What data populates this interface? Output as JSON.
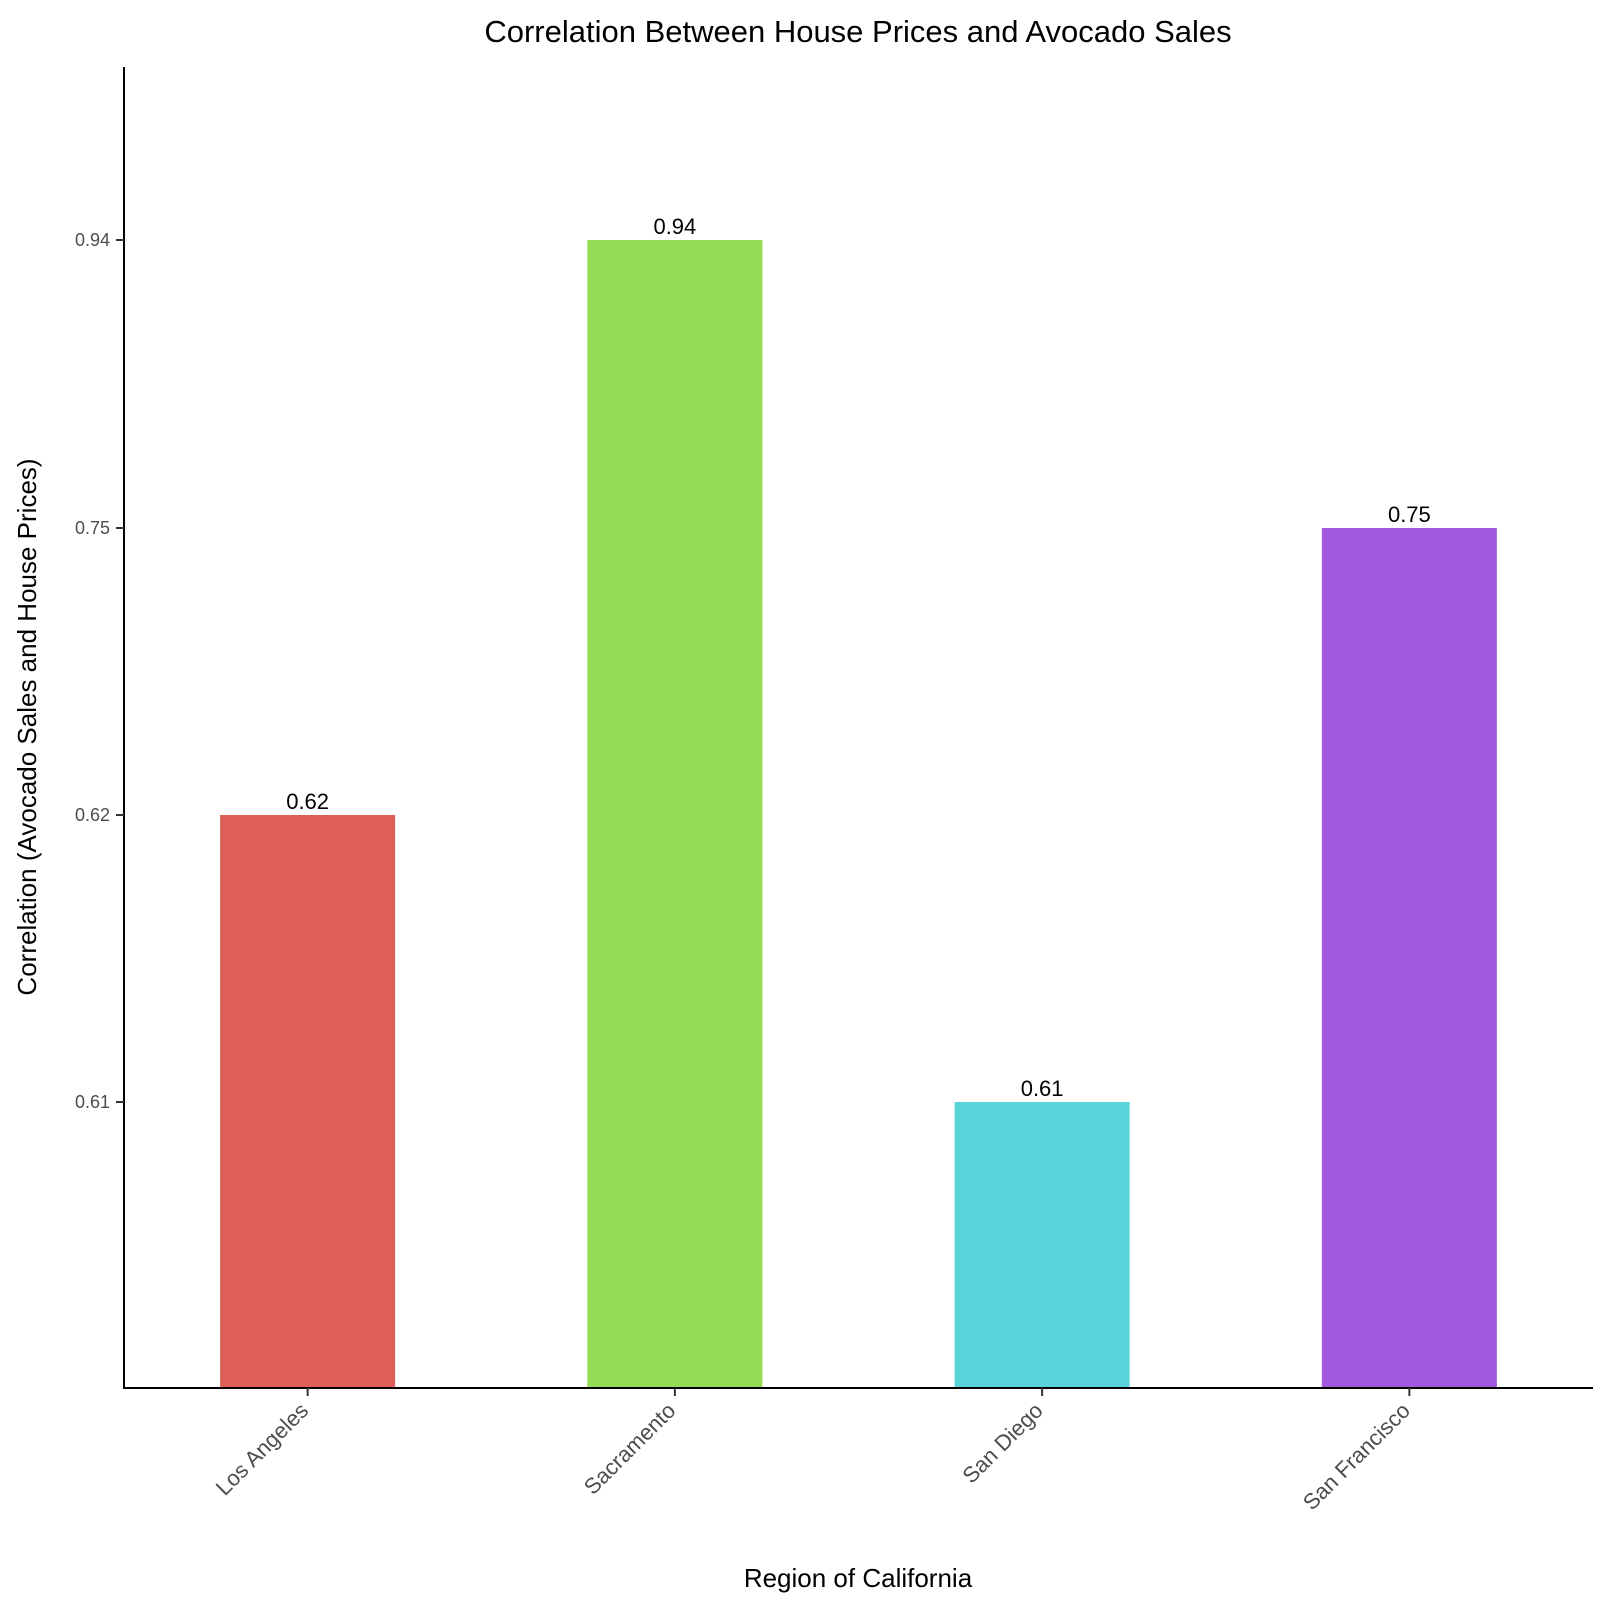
{
  "chart_data": {
    "type": "bar",
    "title": "Correlation Between House Prices and Avocado Sales",
    "xlabel": "Region of California",
    "ylabel": "Correlation (Avocado Sales and House Prices)",
    "categories": [
      "Los Angeles",
      "Sacramento",
      "San Diego",
      "San Francisco"
    ],
    "values": [
      0.62,
      0.94,
      0.61,
      0.75
    ],
    "value_labels": [
      "0.62",
      "0.94",
      "0.61",
      "0.75"
    ],
    "colors": [
      "#DE5F59",
      "#94DC56",
      "#59D4DA",
      "#A059DC"
    ],
    "y_axis_scale": "ordinal",
    "y_ticks": [
      {
        "value": 0.61,
        "label": "0.61"
      },
      {
        "value": 0.62,
        "label": "0.62"
      },
      {
        "value": 0.75,
        "label": "0.75"
      },
      {
        "value": 0.94,
        "label": "0.94"
      }
    ],
    "grid": false,
    "legend": "none"
  }
}
